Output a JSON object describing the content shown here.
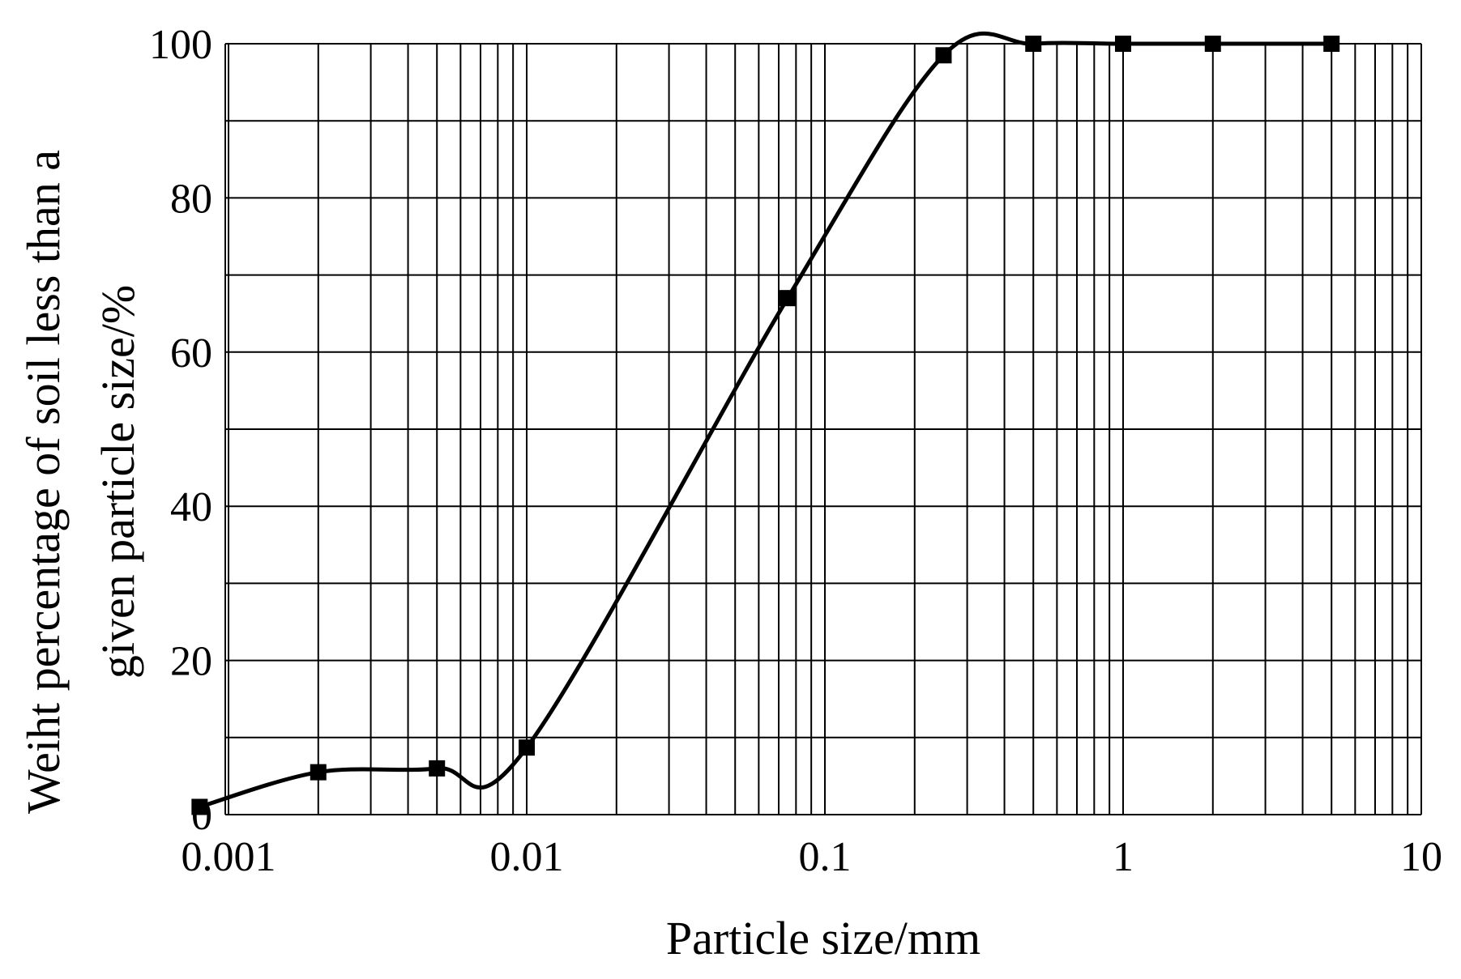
{
  "chart_data": {
    "type": "line",
    "x_scale": "log",
    "xlabel": "Particle size/mm",
    "ylabel_lines": [
      "Weiht percentage of soil less than a",
      "given particle size/%"
    ],
    "xlim": [
      0.001,
      10
    ],
    "ylim": [
      0,
      100
    ],
    "x_ticks": [
      0.001,
      0.01,
      0.1,
      1,
      10
    ],
    "x_tick_labels": [
      "0.001",
      "0.01",
      "0.1",
      "1",
      "10"
    ],
    "y_ticks": [
      0,
      20,
      40,
      60,
      80,
      100
    ],
    "y_tick_labels": [
      "0",
      "20",
      "40",
      "60",
      "80",
      "100"
    ],
    "grid": true,
    "series": [
      {
        "marker": "square",
        "color": "#000000",
        "points": [
          {
            "x": 0.0008,
            "y": 1
          },
          {
            "x": 0.002,
            "y": 5.5
          },
          {
            "x": 0.005,
            "y": 6
          },
          {
            "x": 0.01,
            "y": 8.7
          },
          {
            "x": 0.075,
            "y": 67
          },
          {
            "x": 0.25,
            "y": 98.5
          },
          {
            "x": 0.5,
            "y": 100
          },
          {
            "x": 1,
            "y": 100
          },
          {
            "x": 2,
            "y": 100
          },
          {
            "x": 5,
            "y": 100
          }
        ]
      }
    ]
  }
}
